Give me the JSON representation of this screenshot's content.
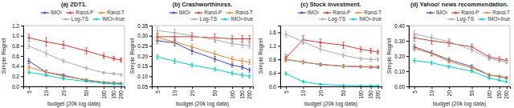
{
  "chart_data": [
    {
      "type": "line",
      "title": "(a) ZDT1.",
      "xlabel": "budget (20k log data)",
      "ylabel": "Simple Regret",
      "x": [
        5,
        10,
        20,
        50,
        100,
        150,
        200
      ],
      "log": "x",
      "xlim": [
        4,
        230
      ],
      "xticks": [
        5,
        10,
        20,
        50,
        100,
        150,
        200
      ],
      "ylim": [
        0.0,
        1.2
      ],
      "yticks": [
        {
          "value": 0.0,
          "label": "0.0"
        },
        0.2,
        0.4,
        0.6,
        0.8,
        {
          "value": 1.0,
          "label": "1.0"
        },
        1.2
      ],
      "grid": false,
      "legend": "top-right",
      "marker": "plus",
      "line_style": "solid",
      "series": [
        {
          "name": "IMO³",
          "color": "#4444bb",
          "values": [
            0.5,
            0.28,
            0.22,
            0.12,
            0.08,
            0.07,
            0.06
          ],
          "err": [
            0.05,
            0.04,
            0.03,
            0.02,
            0.01,
            0.01,
            0.01
          ]
        },
        {
          "name": "Rand-P",
          "color": "#dd3333",
          "values": [
            0.96,
            0.88,
            0.82,
            0.7,
            0.6,
            0.55,
            0.52
          ],
          "err": [
            0.07,
            0.08,
            0.07,
            0.06,
            0.05,
            0.04,
            0.04
          ]
        },
        {
          "name": "Rand-T",
          "color": "#dd8833",
          "values": [
            0.38,
            0.28,
            0.2,
            0.13,
            0.08,
            0.07,
            0.06
          ],
          "err": [
            0.04,
            0.03,
            0.02,
            0.02,
            0.01,
            0.01,
            0.01
          ]
        },
        {
          "name": "Log-TS",
          "color": "#aaaaaa",
          "values": [
            0.8,
            0.65,
            0.5,
            0.36,
            0.27,
            0.25,
            0.23
          ],
          "err": [
            0.05,
            0.05,
            0.04,
            0.03,
            0.02,
            0.02,
            0.02
          ]
        },
        {
          "name": "IMO³-true",
          "color": "#00cccc",
          "values": [
            0.28,
            0.22,
            0.15,
            0.1,
            0.06,
            0.05,
            0.04
          ],
          "err": [
            0.03,
            0.02,
            0.02,
            0.01,
            0.01,
            0.01,
            0.01
          ]
        }
      ]
    },
    {
      "type": "line",
      "title": "(b) Crashworthiness.",
      "xlabel": "budget (20k log data)",
      "ylabel": "Simple Regret",
      "x": [
        5,
        10,
        20,
        50,
        100,
        150,
        200
      ],
      "log": "x",
      "xlim": [
        4,
        230
      ],
      "xticks": [
        5,
        10,
        20,
        50,
        100,
        150,
        200
      ],
      "ylim": [
        0.05,
        0.35
      ],
      "yticks": [
        0.05,
        {
          "value": 0.1,
          "label": "0.10"
        },
        0.15,
        {
          "value": 0.2,
          "label": "0.20"
        },
        0.25,
        {
          "value": 0.3,
          "label": "0.30"
        },
        0.35
      ],
      "grid": false,
      "legend": "top-right",
      "marker": "plus",
      "line_style": "solid",
      "series": [
        {
          "name": "IMO³",
          "color": "#4444bb",
          "values": [
            0.275,
            0.265,
            0.225,
            0.185,
            0.155,
            0.145,
            0.13
          ],
          "err": [
            0.015,
            0.015,
            0.015,
            0.012,
            0.01,
            0.01,
            0.01
          ]
        },
        {
          "name": "Rand-P",
          "color": "#dd3333",
          "values": [
            0.295,
            0.295,
            0.295,
            0.29,
            0.285,
            0.285,
            0.285
          ],
          "err": [
            0.018,
            0.018,
            0.018,
            0.018,
            0.016,
            0.016,
            0.016
          ]
        },
        {
          "name": "Rand-T",
          "color": "#dd8833",
          "values": [
            0.29,
            0.27,
            0.245,
            0.21,
            0.185,
            0.175,
            0.17
          ],
          "err": [
            0.018,
            0.016,
            0.015,
            0.014,
            0.012,
            0.012,
            0.012
          ]
        },
        {
          "name": "Log-TS",
          "color": "#aaaaaa",
          "values": [
            0.325,
            0.315,
            0.3,
            0.28,
            0.26,
            0.255,
            0.25
          ],
          "err": [
            0.018,
            0.016,
            0.015,
            0.014,
            0.012,
            0.012,
            0.012
          ]
        },
        {
          "name": "IMO³-true",
          "color": "#00cccc",
          "values": [
            0.195,
            0.175,
            0.155,
            0.135,
            0.115,
            0.105,
            0.1
          ],
          "err": [
            0.012,
            0.012,
            0.01,
            0.01,
            0.01,
            0.01,
            0.008
          ]
        }
      ]
    },
    {
      "type": "line",
      "title": "(c) Stock investment.",
      "xlabel": "budget (20k log data)",
      "ylabel": "Simple Regret",
      "x": [
        5,
        10,
        20,
        50,
        100,
        150,
        200
      ],
      "log": "x",
      "xlim": [
        4,
        230
      ],
      "xticks": [
        5,
        10,
        20,
        50,
        100,
        150,
        200
      ],
      "ylim": [
        0.0,
        1.8
      ],
      "yticks": [
        {
          "value": 0.0,
          "label": "0.0"
        },
        0.4,
        0.8,
        1.2,
        1.6
      ],
      "grid": false,
      "legend": "top-right",
      "marker": "plus",
      "line_style": "solid",
      "series": [
        {
          "name": "IMO³",
          "color": "#4444bb",
          "values": [
            0.8,
            0.72,
            0.65,
            0.6,
            0.58,
            0.57,
            0.57
          ],
          "err": [
            0.06,
            0.05,
            0.04,
            0.04,
            0.03,
            0.03,
            0.03
          ]
        },
        {
          "name": "Rand-P",
          "color": "#dd3333",
          "values": [
            0.85,
            1.38,
            1.3,
            1.22,
            1.1,
            1.05,
            1.02
          ],
          "err": [
            0.1,
            0.12,
            0.1,
            0.09,
            0.08,
            0.07,
            0.06
          ]
        },
        {
          "name": "Rand-T",
          "color": "#dd8833",
          "values": [
            0.8,
            0.72,
            0.65,
            0.6,
            0.59,
            0.58,
            0.58
          ],
          "err": [
            0.06,
            0.05,
            0.04,
            0.04,
            0.03,
            0.03,
            0.03
          ]
        },
        {
          "name": "Log-TS",
          "color": "#aaaaaa",
          "values": [
            1.55,
            1.32,
            1.1,
            0.92,
            0.82,
            0.8,
            0.8
          ],
          "err": [
            0.09,
            0.08,
            0.07,
            0.06,
            0.05,
            0.05,
            0.05
          ]
        },
        {
          "name": "IMO³-true",
          "color": "#00cccc",
          "values": [
            0.38,
            0.14,
            0.06,
            0.03,
            0.02,
            0.02,
            0.02
          ],
          "err": [
            0.05,
            0.04,
            0.02,
            0.01,
            0.01,
            0.01,
            0.01
          ]
        }
      ]
    },
    {
      "type": "line",
      "title": "(d) Yahoo! news recommendation.",
      "xlabel": "budget (20k log data)",
      "ylabel": "Simple Regret",
      "x": [
        5,
        10,
        20,
        50,
        100,
        150,
        200
      ],
      "log": "x",
      "xlim": [
        4,
        230
      ],
      "xticks": [
        5,
        10,
        20,
        50,
        100,
        150,
        200
      ],
      "ylim": [
        0.0,
        0.4
      ],
      "yticks": [
        {
          "value": 0.0,
          "label": "0.00"
        },
        {
          "value": 0.1,
          "label": "0.10"
        },
        {
          "value": 0.2,
          "label": "0.20"
        },
        {
          "value": 0.3,
          "label": "0.30"
        },
        {
          "value": 0.4,
          "label": "0.40"
        }
      ],
      "grid": false,
      "legend": "top-right",
      "marker": "plus",
      "line_style": "solid",
      "series": [
        {
          "name": "IMO³",
          "color": "#4444bb",
          "values": [
            0.26,
            0.22,
            0.175,
            0.13,
            0.075,
            0.065,
            0.055
          ],
          "err": [
            0.018,
            0.016,
            0.014,
            0.012,
            0.008,
            0.007,
            0.006
          ]
        },
        {
          "name": "Rand-P",
          "color": "#dd3333",
          "values": [
            0.32,
            0.3,
            0.285,
            0.26,
            0.195,
            0.18,
            0.17
          ],
          "err": [
            0.022,
            0.022,
            0.02,
            0.018,
            0.015,
            0.014,
            0.012
          ]
        },
        {
          "name": "Rand-T",
          "color": "#dd8833",
          "values": [
            0.25,
            0.215,
            0.165,
            0.12,
            0.075,
            0.065,
            0.06
          ],
          "err": [
            0.018,
            0.016,
            0.013,
            0.01,
            0.007,
            0.006,
            0.006
          ]
        },
        {
          "name": "Log-TS",
          "color": "#aaaaaa",
          "values": [
            0.345,
            0.32,
            0.295,
            0.24,
            0.185,
            0.17,
            0.16
          ],
          "err": [
            0.02,
            0.018,
            0.018,
            0.016,
            0.014,
            0.012,
            0.012
          ]
        },
        {
          "name": "IMO³-true",
          "color": "#00cccc",
          "values": [
            0.17,
            0.155,
            0.13,
            0.1,
            0.055,
            0.04,
            0.03
          ],
          "err": [
            0.013,
            0.012,
            0.01,
            0.009,
            0.007,
            0.005,
            0.004
          ]
        }
      ]
    }
  ]
}
